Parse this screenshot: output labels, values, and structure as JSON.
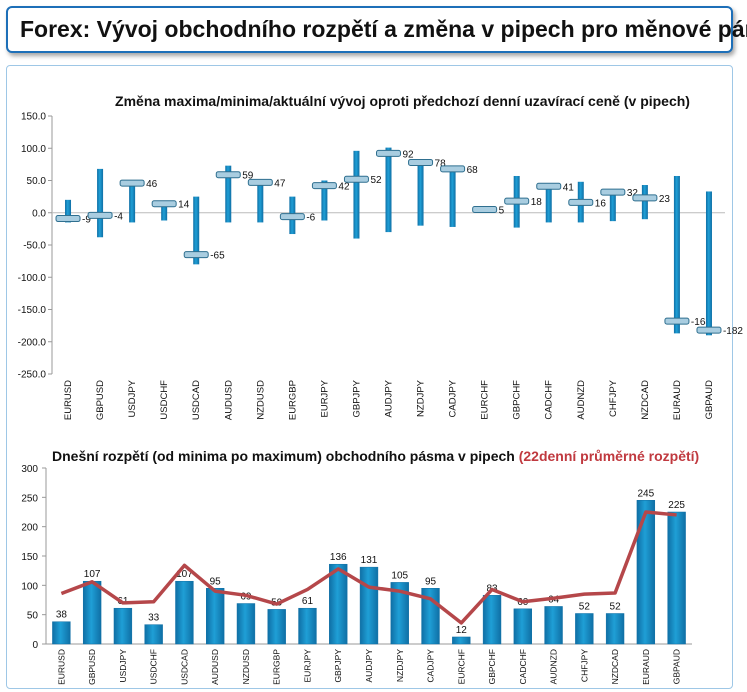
{
  "header": {
    "title": "Forex: Vývoj obchodního rozpětí a změna v pipech pro měnové páry"
  },
  "colors": {
    "bar": "#1f9fd6",
    "bar_dark": "#0f6fa5",
    "line": "#b5474a",
    "border": "#1d6fb8",
    "marker": "#a9cde0"
  },
  "chart_data": [
    {
      "type": "bar",
      "title": "Změna maxima/minima/aktuální vývoj oproti předchozí denní uzavírací ceně (v pipech)",
      "ylim": [
        -250,
        150
      ],
      "yticks": [
        "150.0",
        "100.0",
        "50.0",
        "0.0",
        "-50.0",
        "-100.0",
        "-150.0",
        "-200.0",
        "-250.0"
      ],
      "categories": [
        "EURUSD",
        "GBPUSD",
        "USDJPY",
        "USDCHF",
        "USDCAD",
        "AUDUSD",
        "NZDUSD",
        "EURGBP",
        "EURJPY",
        "GBPJPY",
        "AUDJPY",
        "NZDJPY",
        "CADJPY",
        "EURCHF",
        "GBPCHF",
        "CADCHF",
        "AUDNZD",
        "CHFJPY",
        "NZDCAD",
        "EURAUD",
        "GBPAUD"
      ],
      "high": [
        20,
        68,
        48,
        17,
        25,
        73,
        50,
        25,
        50,
        96,
        101,
        80,
        72,
        8,
        57,
        45,
        48,
        35,
        43,
        57,
        33
      ],
      "low": [
        -15,
        -38,
        -15,
        -12,
        -80,
        -15,
        -15,
        -33,
        -12,
        -40,
        -30,
        -20,
        -22,
        3,
        -23,
        -15,
        -15,
        -13,
        -10,
        -187,
        -190
      ],
      "current": [
        -9,
        -4,
        46,
        14,
        -65,
        59,
        47,
        -6,
        42,
        52,
        92,
        78,
        68,
        5,
        18,
        41,
        16,
        32,
        23,
        -168,
        -182
      ],
      "value_labels": [
        "-9",
        "-4",
        "46",
        "14",
        "-65",
        "59",
        "47",
        "-6",
        "42",
        "52",
        "92",
        "78",
        "68",
        "5",
        "18",
        "41",
        "16",
        "32",
        "23",
        "-168",
        "-182"
      ]
    },
    {
      "type": "bar",
      "title": "Dnešní rozpětí (od minima po maximum) obchodního pásma v pipech",
      "title_red": "(22denní průměrné rozpětí)",
      "ylim": [
        0,
        300
      ],
      "yticks": [
        "300",
        "250",
        "200",
        "150",
        "100",
        "50",
        "0"
      ],
      "categories": [
        "EURUSD",
        "GBPUSD",
        "USDJPY",
        "USDCHF",
        "USDCAD",
        "AUDUSD",
        "NZDUSD",
        "EURGBP",
        "EURJPY",
        "GBPJPY",
        "AUDJPY",
        "NZDJPY",
        "CADJPY",
        "EURCHF",
        "GBPCHF",
        "CADCHF",
        "AUDNZD",
        "CHFJPY",
        "NZDCAD",
        "EURAUD",
        "GBPAUD"
      ],
      "series": [
        {
          "values": [
            38,
            107,
            61,
            33,
            107,
            95,
            69,
            59,
            61,
            136,
            131,
            105,
            95,
            12,
            83,
            60,
            64,
            52,
            52,
            245,
            225
          ]
        },
        {
          "values": [
            86,
            106,
            70,
            72,
            134,
            90,
            83,
            68,
            93,
            128,
            97,
            90,
            77,
            36,
            93,
            72,
            78,
            85,
            87,
            225,
            220
          ]
        }
      ],
      "value_labels": [
        "38",
        "107",
        "61",
        "33",
        "107",
        "95",
        "69",
        "59",
        "61",
        "136",
        "131",
        "105",
        "95",
        "12",
        "83",
        "60",
        "64",
        "52",
        "52",
        "245",
        "225"
      ]
    }
  ]
}
